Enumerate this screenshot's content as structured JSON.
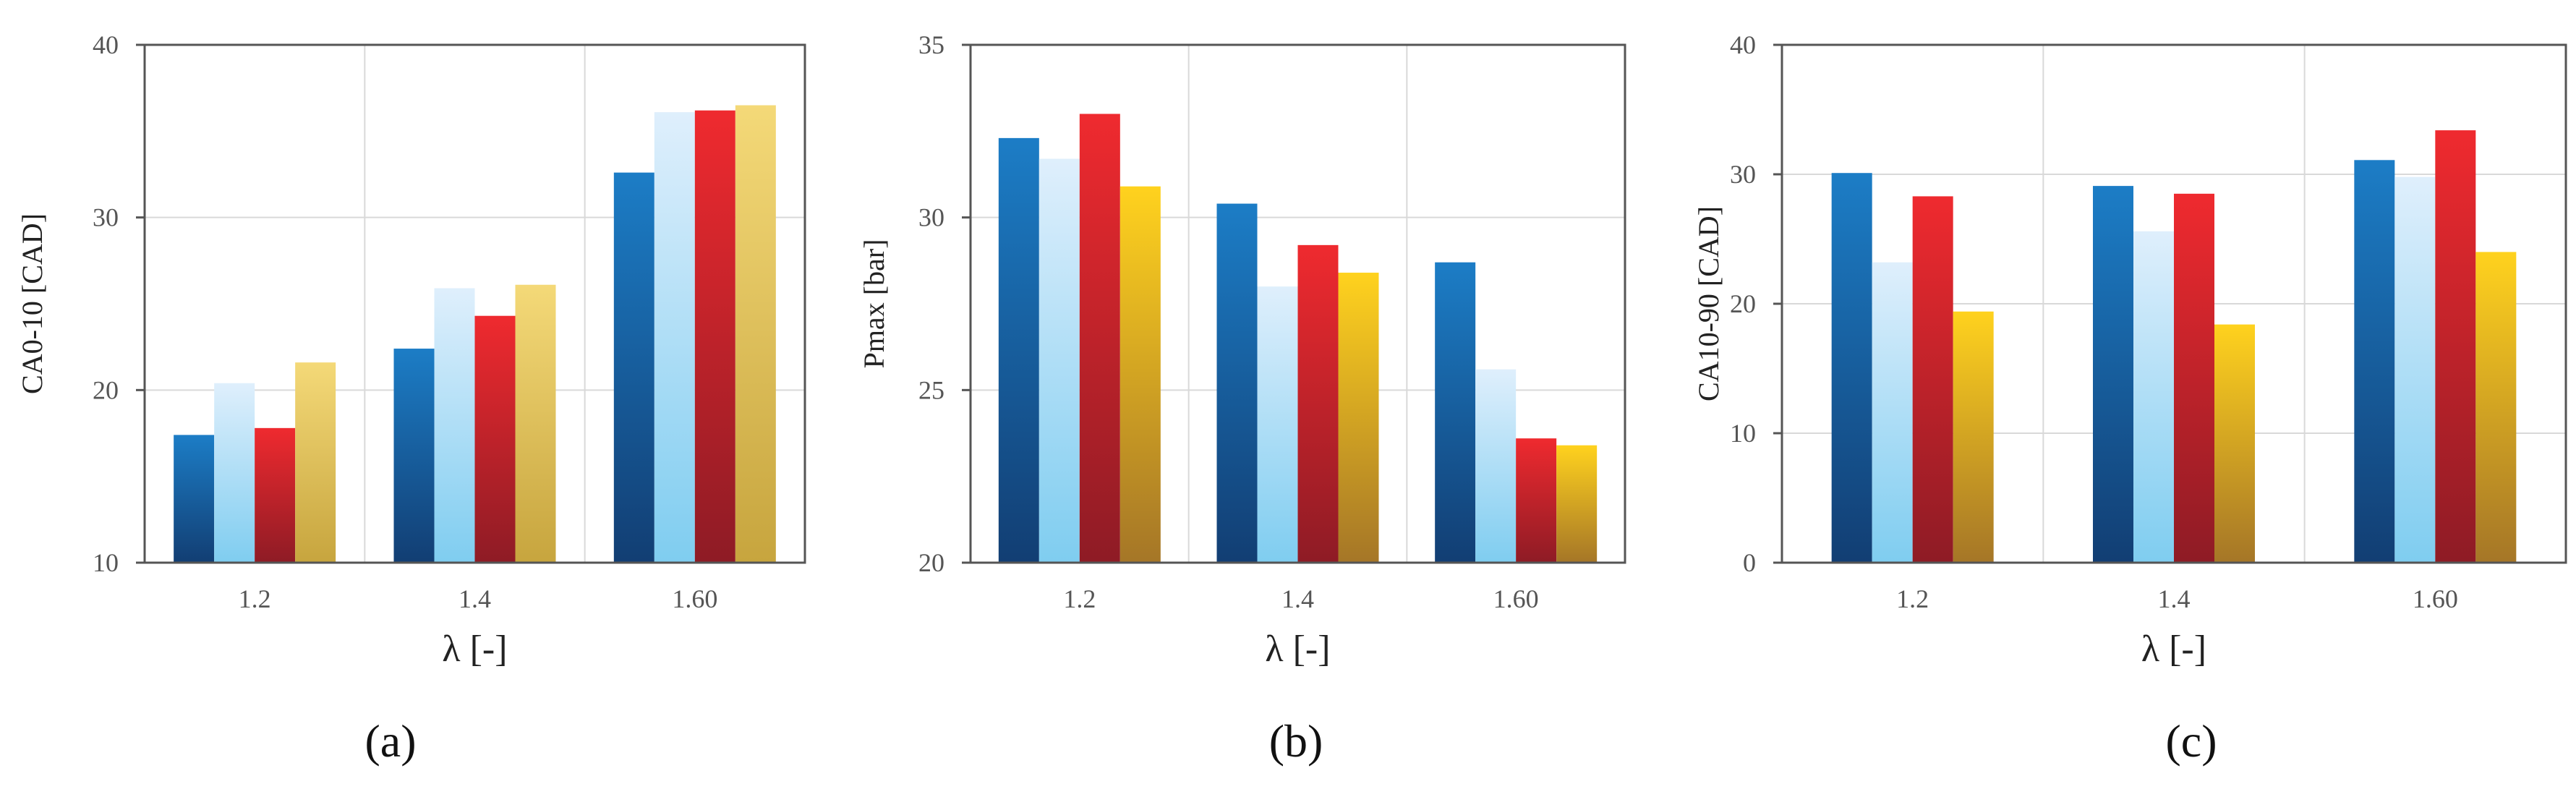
{
  "colors": {
    "series1": [
      "#1c7dc6",
      "#123e73"
    ],
    "series2": [
      "#dfeffc",
      "#7fcdf0"
    ],
    "series3": [
      "#ef2a2f",
      "#8e1b25"
    ],
    "series4": [
      "#ffd21e",
      "#a57627"
    ],
    "series4_alt": [
      "#f4d978",
      "#c7a53e"
    ],
    "axis": "#555555",
    "grid": "#d9d9d9"
  },
  "chart_data": [
    {
      "type": "bar",
      "panel_label": "(a)",
      "categories": [
        "1.2",
        "1.4",
        "1.60"
      ],
      "xlabel": "λ [-]",
      "ylabel": "CA0-10  [CAD]",
      "ylim": [
        10,
        40
      ],
      "yticks": [
        "10",
        "20",
        "30",
        "40"
      ],
      "grid": "both",
      "series": [
        {
          "values": [
            17.4,
            22.4,
            32.6
          ]
        },
        {
          "values": [
            20.4,
            25.9,
            36.1
          ]
        },
        {
          "values": [
            17.8,
            24.3,
            36.2
          ]
        },
        {
          "values": [
            21.6,
            26.1,
            36.5
          ]
        }
      ]
    },
    {
      "type": "bar",
      "panel_label": "(b)",
      "categories": [
        "1.2",
        "1.4",
        "1.60"
      ],
      "xlabel": "λ [-]",
      "ylabel": "Pmax  [bar]",
      "ylim": [
        20,
        35
      ],
      "yticks": [
        "20",
        "25",
        "30",
        "35"
      ],
      "grid": "both",
      "series": [
        {
          "values": [
            32.3,
            30.4,
            28.7
          ]
        },
        {
          "values": [
            31.7,
            28.0,
            25.6
          ]
        },
        {
          "values": [
            33.0,
            29.2,
            23.6
          ]
        },
        {
          "values": [
            30.9,
            28.4,
            23.4
          ]
        }
      ]
    },
    {
      "type": "bar",
      "panel_label": "(c)",
      "categories": [
        "1.2",
        "1.4",
        "1.60"
      ],
      "xlabel": "λ [-]",
      "ylabel": "CA10-90  [CAD]",
      "ylim": [
        0,
        40
      ],
      "yticks": [
        "0",
        "10",
        "20",
        "30",
        "40"
      ],
      "grid": "both",
      "series": [
        {
          "values": [
            30.1,
            29.1,
            31.1
          ]
        },
        {
          "values": [
            23.2,
            25.6,
            29.8
          ]
        },
        {
          "values": [
            28.3,
            28.5,
            33.4
          ]
        },
        {
          "values": [
            19.4,
            18.4,
            24.0
          ]
        }
      ]
    }
  ]
}
